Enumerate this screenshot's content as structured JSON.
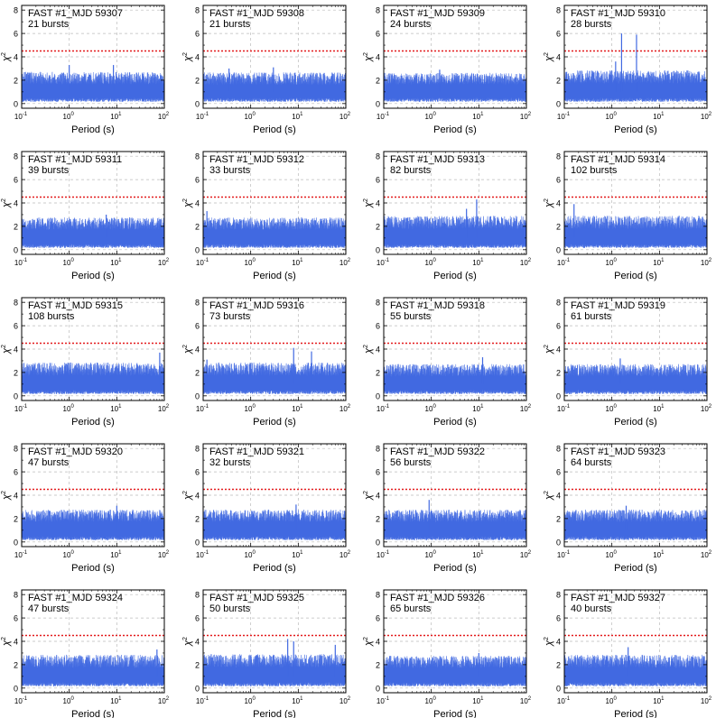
{
  "figure": {
    "xlabel": "Period (s)",
    "ylabel": "χ",
    "ylabel_exponent": "2",
    "x_scale": "log",
    "xlim": [
      0.1,
      100
    ],
    "ylim": [
      -0.4,
      8.4
    ],
    "x_ticks": [
      0.1,
      1,
      10,
      100
    ],
    "x_tick_mantissa": "10",
    "x_tick_exponents": [
      "-1",
      "0",
      "1",
      "2"
    ],
    "y_ticks": [
      0,
      2,
      4,
      6,
      8
    ],
    "y_tick_labels": [
      "0",
      "2",
      "4",
      "6",
      "8"
    ],
    "threshold": 4.5,
    "grid": true,
    "series_color": "#4169e1",
    "threshold_color": "#e31a1c",
    "grid_color": "#bbbbbb"
  },
  "chart_data": [
    {
      "type": "line",
      "title": "FAST #1_MJD 59307",
      "subtitle": "21 bursts",
      "seed": 1,
      "baseline": 1.4,
      "spread": 0.75,
      "peaks": [
        {
          "x": 1.0,
          "y": 3.3
        },
        {
          "x": 8.5,
          "y": 3.3
        }
      ]
    },
    {
      "type": "line",
      "title": "FAST #1_MJD 59308",
      "subtitle": "21 bursts",
      "seed": 2,
      "baseline": 1.35,
      "spread": 0.75,
      "peaks": [
        {
          "x": 0.35,
          "y": 3.0
        },
        {
          "x": 3.0,
          "y": 3.1
        }
      ]
    },
    {
      "type": "line",
      "title": "FAST #1_MJD 59309",
      "subtitle": "24 bursts",
      "seed": 3,
      "baseline": 1.4,
      "spread": 0.7,
      "peaks": [
        {
          "x": 1.5,
          "y": 2.9
        }
      ]
    },
    {
      "type": "line",
      "title": "FAST #1_MJD 59310",
      "subtitle": "28 bursts",
      "seed": 4,
      "baseline": 1.45,
      "spread": 0.8,
      "peaks": [
        {
          "x": 1.6,
          "y": 6.0
        },
        {
          "x": 3.3,
          "y": 5.9
        },
        {
          "x": 1.2,
          "y": 3.6
        }
      ]
    },
    {
      "type": "line",
      "title": "FAST #1_MJD 59311",
      "subtitle": "39 bursts",
      "seed": 5,
      "baseline": 1.45,
      "spread": 0.75,
      "peaks": [
        {
          "x": 6.0,
          "y": 3.0
        }
      ]
    },
    {
      "type": "line",
      "title": "FAST #1_MJD 59312",
      "subtitle": "33 bursts",
      "seed": 6,
      "baseline": 1.45,
      "spread": 0.75,
      "peaks": [
        {
          "x": 0.12,
          "y": 3.3
        }
      ]
    },
    {
      "type": "line",
      "title": "FAST #1_MJD 59313",
      "subtitle": "82 bursts",
      "seed": 7,
      "baseline": 1.5,
      "spread": 0.8,
      "peaks": [
        {
          "x": 9.0,
          "y": 4.3
        },
        {
          "x": 5.5,
          "y": 3.5
        }
      ]
    },
    {
      "type": "line",
      "title": "FAST #1_MJD 59314",
      "subtitle": "102 bursts",
      "seed": 8,
      "baseline": 1.5,
      "spread": 0.8,
      "peaks": [
        {
          "x": 0.16,
          "y": 3.9
        }
      ]
    },
    {
      "type": "line",
      "title": "FAST #1_MJD 59315",
      "subtitle": "108 bursts",
      "seed": 9,
      "baseline": 1.45,
      "spread": 0.8,
      "peaks": [
        {
          "x": 80.0,
          "y": 3.7
        }
      ]
    },
    {
      "type": "line",
      "title": "FAST #1_MJD 59316",
      "subtitle": "73 bursts",
      "seed": 10,
      "baseline": 1.45,
      "spread": 0.8,
      "peaks": [
        {
          "x": 8.0,
          "y": 4.1
        },
        {
          "x": 19.0,
          "y": 3.8
        },
        {
          "x": 0.12,
          "y": 3.1
        }
      ]
    },
    {
      "type": "line",
      "title": "FAST #1_MJD 59318",
      "subtitle": "55 bursts",
      "seed": 11,
      "baseline": 1.4,
      "spread": 0.75,
      "peaks": [
        {
          "x": 12.0,
          "y": 3.3
        }
      ]
    },
    {
      "type": "line",
      "title": "FAST #1_MJD 59319",
      "subtitle": "61 bursts",
      "seed": 12,
      "baseline": 1.4,
      "spread": 0.75,
      "peaks": [
        {
          "x": 1.5,
          "y": 3.2
        }
      ]
    },
    {
      "type": "line",
      "title": "FAST #1_MJD 59320",
      "subtitle": "47 bursts",
      "seed": 13,
      "baseline": 1.45,
      "spread": 0.75,
      "peaks": [
        {
          "x": 10.0,
          "y": 3.1
        }
      ]
    },
    {
      "type": "line",
      "title": "FAST #1_MJD 59321",
      "subtitle": "32 bursts",
      "seed": 14,
      "baseline": 1.45,
      "spread": 0.75,
      "peaks": [
        {
          "x": 9.0,
          "y": 3.2
        }
      ]
    },
    {
      "type": "line",
      "title": "FAST #1_MJD 59322",
      "subtitle": "56 bursts",
      "seed": 15,
      "baseline": 1.45,
      "spread": 0.75,
      "peaks": [
        {
          "x": 0.9,
          "y": 3.6
        }
      ]
    },
    {
      "type": "line",
      "title": "FAST #1_MJD 59323",
      "subtitle": "64 bursts",
      "seed": 16,
      "baseline": 1.45,
      "spread": 0.75,
      "peaks": [
        {
          "x": 2.0,
          "y": 3.1
        }
      ]
    },
    {
      "type": "line",
      "title": "FAST #1_MJD 59324",
      "subtitle": "47 bursts",
      "seed": 17,
      "baseline": 1.45,
      "spread": 0.8,
      "peaks": [
        {
          "x": 70.0,
          "y": 3.3
        }
      ]
    },
    {
      "type": "line",
      "title": "FAST #1_MJD 59325",
      "subtitle": "50 bursts",
      "seed": 18,
      "baseline": 1.5,
      "spread": 0.8,
      "peaks": [
        {
          "x": 6.0,
          "y": 4.2
        },
        {
          "x": 8.0,
          "y": 4.0
        },
        {
          "x": 60.0,
          "y": 3.7
        }
      ]
    },
    {
      "type": "line",
      "title": "FAST #1_MJD 59326",
      "subtitle": "65 bursts",
      "seed": 19,
      "baseline": 1.45,
      "spread": 0.75,
      "peaks": [
        {
          "x": 10.0,
          "y": 3.0
        }
      ]
    },
    {
      "type": "line",
      "title": "FAST #1_MJD 59327",
      "subtitle": "40 bursts",
      "seed": 20,
      "baseline": 1.45,
      "spread": 0.8,
      "peaks": [
        {
          "x": 2.2,
          "y": 3.5
        }
      ]
    }
  ]
}
